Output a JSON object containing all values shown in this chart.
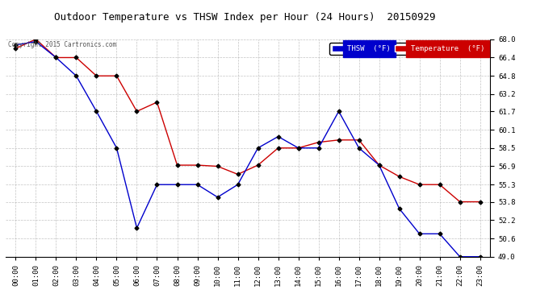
{
  "title": "Outdoor Temperature vs THSW Index per Hour (24 Hours)  20150929",
  "copyright": "Copyright 2015 Cartronics.com",
  "x_labels": [
    "00:00",
    "01:00",
    "02:00",
    "03:00",
    "04:00",
    "05:00",
    "06:00",
    "07:00",
    "08:00",
    "09:00",
    "10:00",
    "11:00",
    "12:00",
    "13:00",
    "14:00",
    "15:00",
    "16:00",
    "17:00",
    "18:00",
    "19:00",
    "20:00",
    "21:00",
    "22:00",
    "23:00"
  ],
  "temperature": [
    67.2,
    68.0,
    66.4,
    66.4,
    64.8,
    64.8,
    61.7,
    62.5,
    57.0,
    57.0,
    56.9,
    56.2,
    57.0,
    58.5,
    58.5,
    59.0,
    59.2,
    59.2,
    57.0,
    56.0,
    55.3,
    55.3,
    53.8,
    53.8
  ],
  "thsw": [
    67.5,
    67.8,
    66.4,
    64.8,
    61.7,
    58.5,
    51.5,
    55.3,
    55.3,
    55.3,
    54.2,
    55.3,
    58.5,
    59.5,
    58.5,
    58.5,
    61.7,
    58.5,
    57.0,
    53.2,
    51.0,
    51.0,
    49.0,
    49.0
  ],
  "ylim_min": 49.0,
  "ylim_max": 68.0,
  "yticks": [
    49.0,
    50.6,
    52.2,
    53.8,
    55.3,
    56.9,
    58.5,
    60.1,
    61.7,
    63.2,
    64.8,
    66.4,
    68.0
  ],
  "temp_color": "#cc0000",
  "thsw_color": "#0000cc",
  "bg_color": "#ffffff",
  "grid_color": "#aaaaaa",
  "title_color": "#000000",
  "legend_thsw_bg": "#0000cc",
  "legend_temp_bg": "#cc0000",
  "marker_color_temp": "#000000",
  "marker_color_thsw": "#000000"
}
